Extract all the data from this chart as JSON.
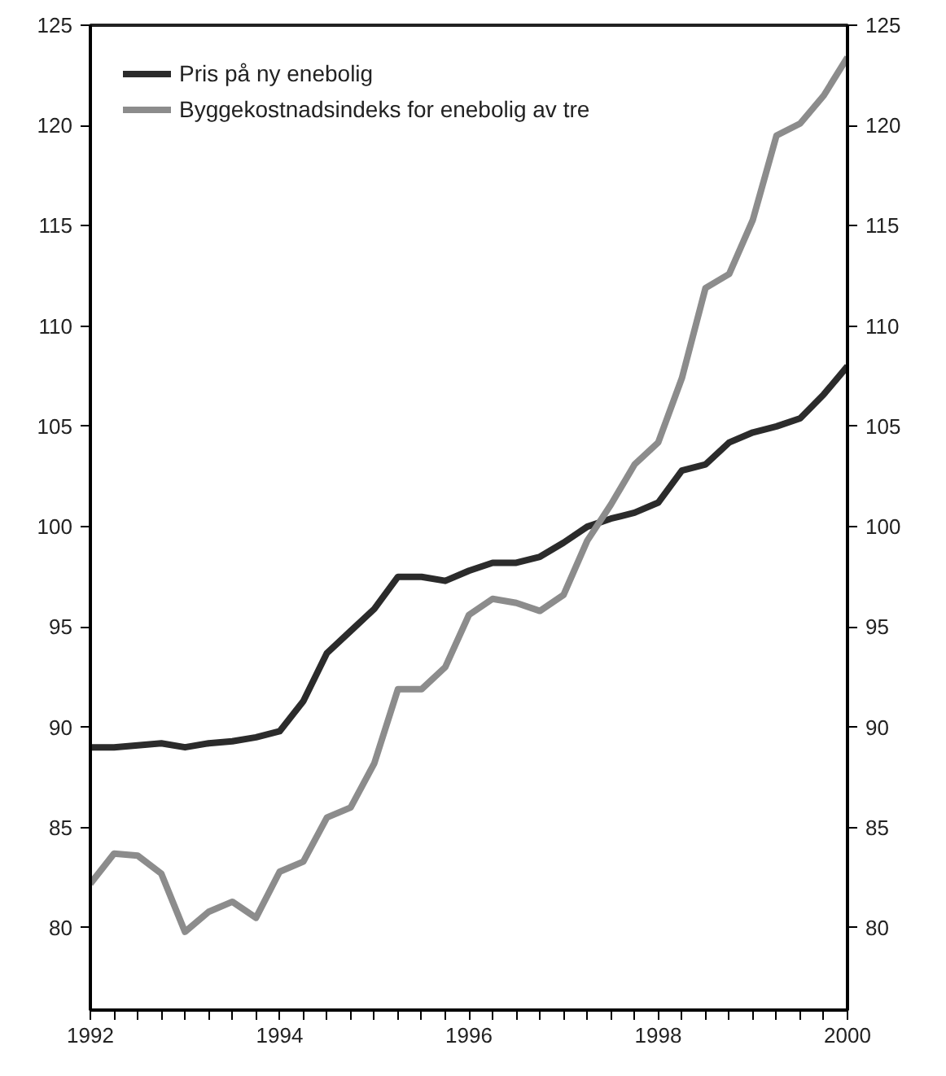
{
  "chart_data": {
    "type": "line",
    "x": [
      1992,
      1992.25,
      1992.5,
      1992.75,
      1993,
      1993.25,
      1993.5,
      1993.75,
      1994,
      1994.25,
      1994.5,
      1994.75,
      1995,
      1995.25,
      1995.5,
      1995.75,
      1996,
      1996.25,
      1996.5,
      1996.75,
      1997,
      1997.25,
      1997.5,
      1997.75,
      1998,
      1998.25,
      1998.5,
      1998.75,
      1999,
      1999.25,
      1999.5,
      1999.75,
      2000
    ],
    "series": [
      {
        "name": "Pris på ny enebolig",
        "color": "#2b2b2b",
        "values": [
          89.0,
          89.0,
          89.1,
          89.2,
          89.0,
          89.2,
          89.3,
          89.5,
          89.8,
          91.3,
          93.7,
          94.8,
          95.9,
          97.5,
          97.5,
          97.3,
          97.8,
          98.2,
          98.2,
          98.5,
          99.2,
          100.0,
          100.4,
          100.7,
          101.2,
          102.8,
          103.1,
          104.2,
          104.7,
          105.0,
          105.4,
          106.6,
          108.0
        ]
      },
      {
        "name": "Byggekostnadsindeks for enebolig av tre",
        "color": "#8c8c8c",
        "values": [
          82.2,
          83.7,
          83.6,
          82.7,
          79.8,
          80.8,
          81.3,
          80.5,
          82.8,
          83.3,
          85.5,
          86.0,
          88.2,
          91.9,
          91.9,
          93.0,
          95.6,
          96.4,
          96.2,
          95.8,
          96.6,
          99.3,
          101.1,
          103.1,
          104.2,
          107.4,
          111.9,
          112.6,
          115.3,
          119.5,
          120.1,
          121.5,
          123.4
        ]
      }
    ],
    "xlim": [
      1992,
      2000
    ],
    "xticks": [
      1992,
      {
        "value": 1992.25,
        "label": null
      },
      {
        "value": 1992.5,
        "label": null
      },
      {
        "value": 1992.75,
        "label": null
      },
      {
        "value": 1993,
        "label": null
      },
      {
        "value": 1993.25,
        "label": null
      },
      {
        "value": 1993.5,
        "label": null
      },
      {
        "value": 1993.75,
        "label": null
      },
      1994,
      {
        "value": 1994.25,
        "label": null
      },
      {
        "value": 1994.5,
        "label": null
      },
      {
        "value": 1994.75,
        "label": null
      },
      {
        "value": 1995,
        "label": null
      },
      {
        "value": 1995.25,
        "label": null
      },
      {
        "value": 1995.5,
        "label": null
      },
      {
        "value": 1995.75,
        "label": null
      },
      1996,
      {
        "value": 1996.25,
        "label": null
      },
      {
        "value": 1996.5,
        "label": null
      },
      {
        "value": 1996.75,
        "label": null
      },
      {
        "value": 1997,
        "label": null
      },
      {
        "value": 1997.25,
        "label": null
      },
      {
        "value": 1997.5,
        "label": null
      },
      {
        "value": 1997.75,
        "label": null
      },
      1998,
      {
        "value": 1998.25,
        "label": null
      },
      {
        "value": 1998.5,
        "label": null
      },
      {
        "value": 1998.75,
        "label": null
      },
      {
        "value": 1999,
        "label": null
      },
      {
        "value": 1999.25,
        "label": null
      },
      {
        "value": 1999.5,
        "label": null
      },
      {
        "value": 1999.75,
        "label": null
      },
      2000
    ],
    "ylim": [
      75.9,
      125
    ],
    "yticks": [
      80,
      85,
      90,
      95,
      100,
      105,
      110,
      115,
      120,
      125
    ],
    "y2lim": [
      75.9,
      125
    ],
    "y2ticks": [
      80,
      85,
      90,
      95,
      100,
      105,
      110,
      115,
      120,
      125
    ],
    "grid": false,
    "legend": "top left",
    "marker": "none",
    "line_style": "solid"
  }
}
